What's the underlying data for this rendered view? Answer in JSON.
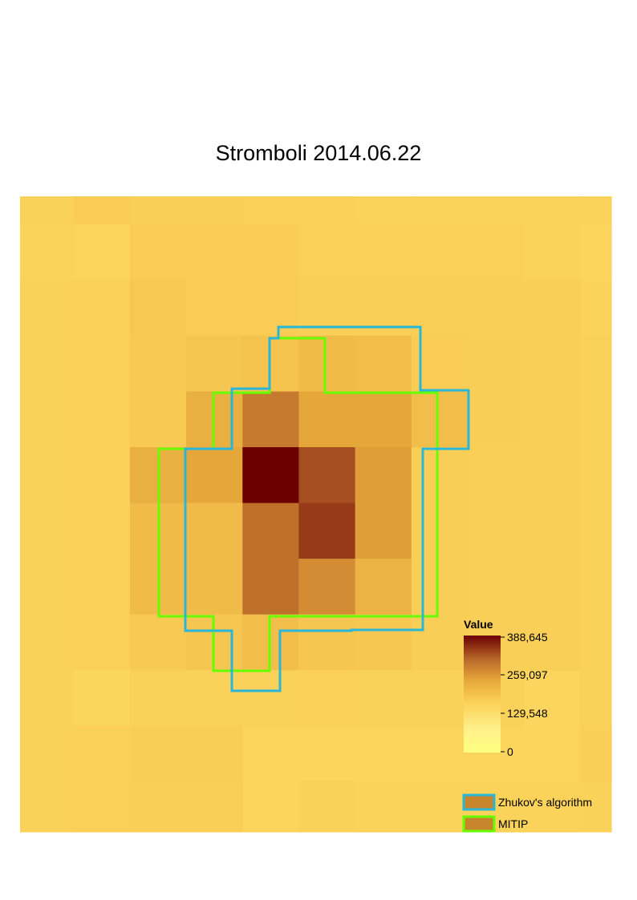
{
  "title": "Stromboli 2014.06.22",
  "chart_data": {
    "type": "heatmap",
    "title": "Stromboli 2014.06.22",
    "zlim": [
      0,
      388645
    ],
    "colorbar": {
      "title": "Value",
      "ticks": [
        388645,
        259097,
        129548,
        0
      ],
      "tick_labels": [
        "388,645",
        "259,097",
        "129,548",
        "0"
      ],
      "gradient_colors": [
        "#ffff80",
        "#fde68a",
        "#f8c443",
        "#d28a2a",
        "#a54e1a",
        "#6b0000"
      ]
    },
    "grid": [
      [
        165000,
        175000,
        170000,
        170000,
        168000,
        168000,
        162000,
        162000,
        162000,
        162000,
        162000
      ],
      [
        162000,
        160000,
        175000,
        175000,
        175000,
        168000,
        168000,
        168000,
        168000,
        162000,
        158000
      ],
      [
        165000,
        168000,
        180000,
        175000,
        175000,
        170000,
        170000,
        170000,
        170000,
        170000,
        162000
      ],
      [
        165000,
        168000,
        178000,
        185000,
        190000,
        205000,
        200000,
        175000,
        172000,
        170000,
        165000
      ],
      [
        165000,
        168000,
        178000,
        225000,
        290000,
        240000,
        240000,
        200000,
        172000,
        170000,
        165000
      ],
      [
        165000,
        168000,
        225000,
        240000,
        388645,
        330000,
        250000,
        172000,
        170000,
        170000,
        165000
      ],
      [
        165000,
        168000,
        205000,
        205000,
        300000,
        345000,
        250000,
        172000,
        170000,
        170000,
        165000
      ],
      [
        165000,
        168000,
        205000,
        205000,
        300000,
        270000,
        220000,
        172000,
        170000,
        170000,
        165000
      ],
      [
        165000,
        168000,
        178000,
        185000,
        200000,
        185000,
        182000,
        172000,
        170000,
        170000,
        165000
      ],
      [
        165000,
        155000,
        165000,
        165000,
        165000,
        168000,
        165000,
        165000,
        165000,
        158000,
        165000
      ],
      [
        165000,
        168000,
        172000,
        172000,
        160000,
        160000,
        160000,
        160000,
        160000,
        160000,
        170000
      ],
      [
        165000,
        168000,
        170000,
        170000,
        158000,
        165000,
        162000,
        162000,
        162000,
        162000,
        165000
      ]
    ],
    "series": [
      {
        "name": "Zhukov's algorithm",
        "color": "#29b6d9",
        "outline_cells": [
          [
            2.2,
            4.5
          ],
          [
            4.5,
            2.4
          ],
          [
            7.25,
            3.4
          ],
          [
            7.5,
            6.8
          ],
          [
            5.4,
            9.8
          ],
          [
            3.1,
            8.0
          ],
          [
            2.5,
            5.5
          ]
        ]
      },
      {
        "name": "MITIP",
        "color": "#66ff00",
        "outline_cells": [
          [
            2,
            4.4
          ],
          [
            4.4,
            2.4
          ],
          [
            7.4,
            3.6
          ],
          [
            7.5,
            6.6
          ],
          [
            5.6,
            9.4
          ],
          [
            3.1,
            8.0
          ],
          [
            2.6,
            5.6
          ]
        ]
      }
    ],
    "legend": {
      "position": "bottom-right",
      "items": [
        "Zhukov's algorithm",
        "MITIP"
      ]
    }
  }
}
